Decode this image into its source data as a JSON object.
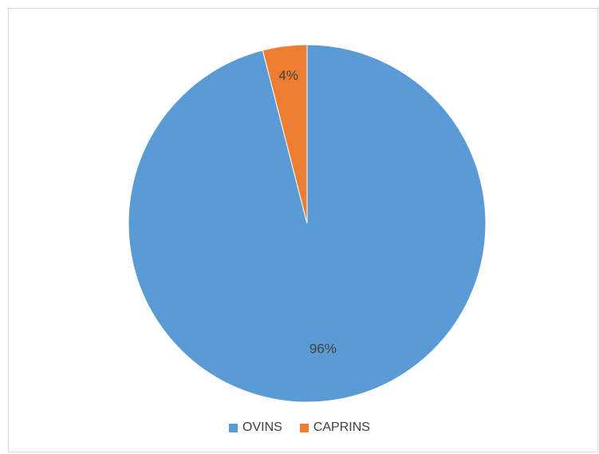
{
  "chart_data": {
    "type": "pie",
    "title": "",
    "slices": [
      {
        "name": "OVINS",
        "value": 96,
        "label": "96%",
        "color": "#5b9bd5"
      },
      {
        "name": "CAPRINS",
        "value": 4,
        "label": "4%",
        "color": "#ed7d31"
      }
    ],
    "start_angle_deg": 0,
    "direction": "clockwise",
    "legend_position": "bottom"
  }
}
